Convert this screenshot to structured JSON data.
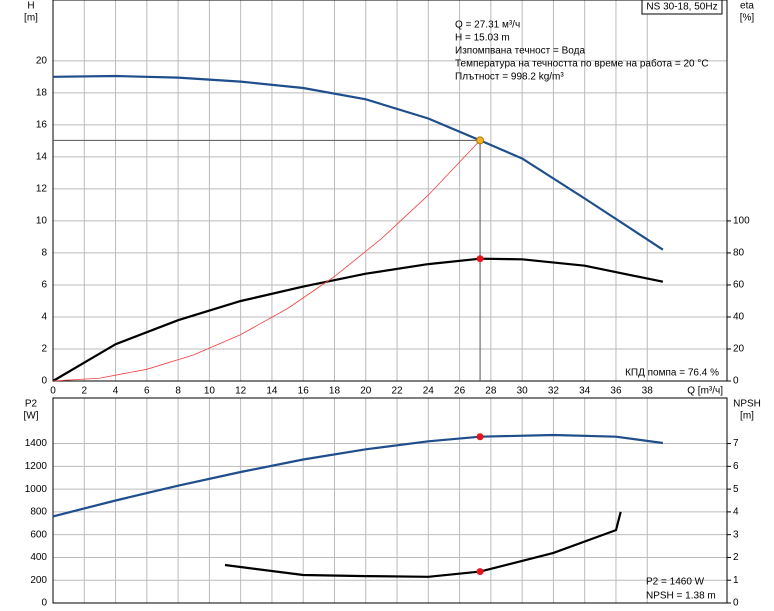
{
  "chart_data": [
    {
      "type": "line",
      "y_label": [
        "H",
        "[m]"
      ],
      "y2_label": [
        "eta",
        "[%]"
      ],
      "x_label": "Q [m³/ч]",
      "tag": "NS 30-18, 50Hz",
      "annotations": [
        "Q = 27.31 м³/ч",
        "H = 15.03 m",
        "Изпомпвана течност = Вода",
        "Температура на течността по време на работа = 20 °C",
        "Плътност = 998.2 kg/m³"
      ],
      "footnote": "КПД помпа = 76.4 %",
      "xlim": [
        0,
        43.1
      ],
      "ylim": [
        0,
        23.8
      ],
      "y2lim": [
        0,
        238
      ],
      "xticks": [
        0,
        2,
        4,
        6,
        8,
        10,
        12,
        14,
        16,
        18,
        20,
        22,
        24,
        26,
        28,
        30,
        32,
        34,
        36,
        38
      ],
      "yticks": [
        0,
        2,
        4,
        6,
        8,
        10,
        12,
        14,
        16,
        18,
        20
      ],
      "y2ticks": [
        0,
        20,
        40,
        60,
        80,
        100
      ],
      "grid": true,
      "series": [
        {
          "color": "#1f4e8c",
          "x": [
            0,
            4,
            8,
            12,
            16,
            20,
            24,
            27.31,
            30,
            34,
            39
          ],
          "values": [
            19.0,
            19.05,
            18.95,
            18.7,
            18.3,
            17.6,
            16.4,
            15.03,
            13.9,
            11.4,
            8.2
          ]
        },
        {
          "color": "#000000",
          "axis": "y2",
          "x": [
            0,
            4,
            8,
            12,
            16,
            20,
            24,
            27.31,
            30,
            34,
            39
          ],
          "values": [
            0,
            23,
            38,
            50,
            59,
            67,
            73,
            76.4,
            76,
            72,
            62
          ]
        },
        {
          "color": "#f04040",
          "x": [
            0,
            3,
            6,
            9,
            12,
            15,
            18,
            21,
            24,
            27.31
          ],
          "values": [
            0,
            0.18,
            0.73,
            1.63,
            2.9,
            4.53,
            6.53,
            8.89,
            11.61,
            15.03
          ]
        }
      ],
      "points": [
        {
          "x": 27.31,
          "y": 15.03,
          "color": "#f5b324"
        },
        {
          "x": 27.31,
          "y": 76.4,
          "axis": "y2",
          "color": "#e8141c"
        }
      ]
    },
    {
      "type": "line",
      "y_label": [
        "P2",
        "[W]"
      ],
      "y2_label": [
        "NPSH",
        "[m]"
      ],
      "annotations": [
        "P2 = 1460 W",
        "NPSH = 1.38 m"
      ],
      "xlim": [
        0,
        43.1
      ],
      "ylim": [
        0,
        1800
      ],
      "y2lim": [
        0,
        9
      ],
      "yticks": [
        0,
        200,
        400,
        600,
        800,
        1000,
        1200,
        1400
      ],
      "y2ticks": [
        0,
        1,
        2,
        3,
        4,
        5,
        6,
        7
      ],
      "grid": true,
      "series": [
        {
          "color": "#1f4e8c",
          "x": [
            0,
            4,
            8,
            12,
            16,
            20,
            24,
            27.31,
            32,
            36,
            39
          ],
          "values": [
            760,
            900,
            1030,
            1150,
            1260,
            1350,
            1420,
            1460,
            1475,
            1460,
            1405
          ]
        },
        {
          "color": "#000000",
          "axis": "y2",
          "x": [
            11,
            16,
            20,
            24,
            27.31,
            32,
            36,
            36.3
          ],
          "values": [
            1.67,
            1.23,
            1.18,
            1.15,
            1.38,
            2.2,
            3.2,
            4.0
          ]
        }
      ],
      "points": [
        {
          "x": 27.31,
          "y": 1460,
          "color": "#e8141c"
        },
        {
          "x": 27.31,
          "y": 1.38,
          "axis": "y2",
          "color": "#e8141c"
        }
      ]
    }
  ]
}
